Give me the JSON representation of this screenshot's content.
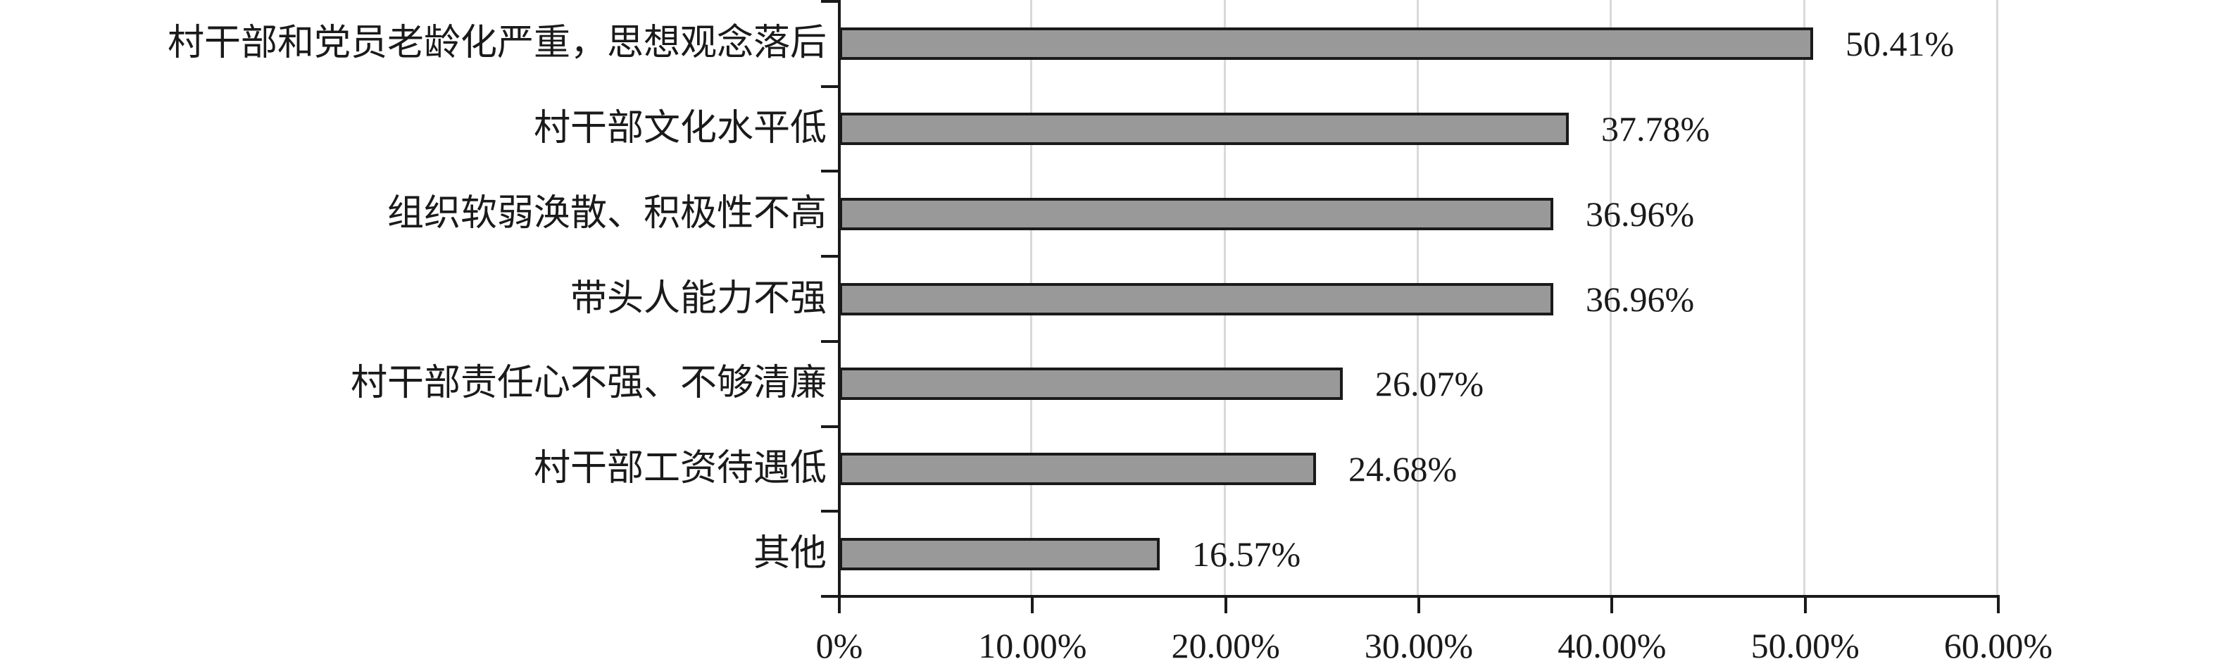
{
  "chart_data": {
    "type": "bar",
    "orientation": "horizontal",
    "title": "",
    "xlabel": "",
    "ylabel": "",
    "categories": [
      "村干部和党员老龄化严重，思想观念落后",
      "村干部文化水平低",
      "组织软弱涣散、积极性不高",
      "带头人能力不强",
      "村干部责任心不强、不够清廉",
      "村干部工资待遇低",
      "其他"
    ],
    "values": [
      50.41,
      37.78,
      36.96,
      36.96,
      26.07,
      24.68,
      16.57
    ],
    "data_labels": [
      "50.41%",
      "37.78%",
      "36.96%",
      "36.96%",
      "26.07%",
      "24.68%",
      "16.57%"
    ],
    "xlim": [
      0,
      60
    ],
    "x_ticks": [
      0,
      10,
      20,
      30,
      40,
      50,
      60
    ],
    "x_tick_labels": [
      "0%",
      "10.00%",
      "20.00%",
      "30.00%",
      "40.00%",
      "50.00%",
      "60.00%"
    ],
    "grid": "vertical-gridlines-every-10-percent",
    "legend": "none",
    "colors": {
      "bar_fill": "#999999",
      "bar_border": "#1a1a1a",
      "axis": "#1a1a1a",
      "gridline": "#d9d9d9",
      "text": "#1a1a1a",
      "background": "#ffffff"
    }
  }
}
